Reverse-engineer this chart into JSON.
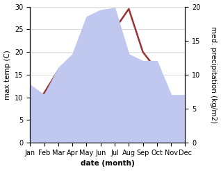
{
  "months": [
    "Jan",
    "Feb",
    "Mar",
    "Apr",
    "May",
    "Jun",
    "Jul",
    "Aug",
    "Sep",
    "Oct",
    "Nov",
    "Dec"
  ],
  "month_indices": [
    0,
    1,
    2,
    3,
    4,
    5,
    6,
    7,
    8,
    9,
    10,
    11
  ],
  "temp_max": [
    6.5,
    11.0,
    16.0,
    17.0,
    21.5,
    26.0,
    25.0,
    29.5,
    20.0,
    16.0,
    10.0,
    6.5
  ],
  "precip": [
    8.5,
    7.0,
    11.0,
    13.0,
    18.5,
    19.5,
    19.8,
    13.0,
    12.0,
    12.0,
    7.0,
    7.0
  ],
  "temp_color": "#993333",
  "precip_fill_color": "#c0c8f0",
  "ylim_temp": [
    0,
    30
  ],
  "ylim_precip": [
    0,
    20
  ],
  "yticks_temp": [
    0,
    5,
    10,
    15,
    20,
    25,
    30
  ],
  "yticks_precip": [
    0,
    5,
    10,
    15,
    20
  ],
  "ylabel_left": "max temp (C)",
  "ylabel_right": "med. precipitation (kg/m2)",
  "xlabel": "date (month)",
  "label_fontsize": 7.5,
  "tick_fontsize": 7,
  "linewidth": 1.8
}
